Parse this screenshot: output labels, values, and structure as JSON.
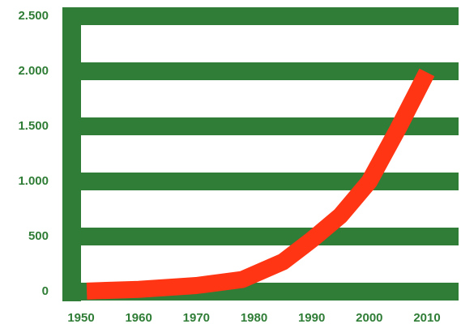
{
  "chart_data": {
    "type": "line",
    "x": [
      1951,
      1960,
      1970,
      1978,
      1985,
      1990,
      1995,
      2000,
      2005,
      2010
    ],
    "series": [
      {
        "color": "#ff3514",
        "values": [
          5,
          20,
          55,
          110,
          270,
          470,
          690,
          1000,
          1480,
          1990
        ]
      }
    ],
    "xlim": [
      1950,
      2010
    ],
    "xticks": [
      1950,
      1960,
      1970,
      1980,
      1990,
      2000,
      2010
    ],
    "ylim": [
      0,
      2500
    ],
    "yticks": [
      0,
      500,
      {
        "value": 1000,
        "label": "1.000"
      },
      {
        "value": 1500,
        "label": "1.500"
      },
      {
        "value": 2000,
        "label": "2.000"
      },
      {
        "value": 2500,
        "label": "2.500"
      }
    ],
    "grid": true,
    "grid_color": "#2f7d36"
  }
}
